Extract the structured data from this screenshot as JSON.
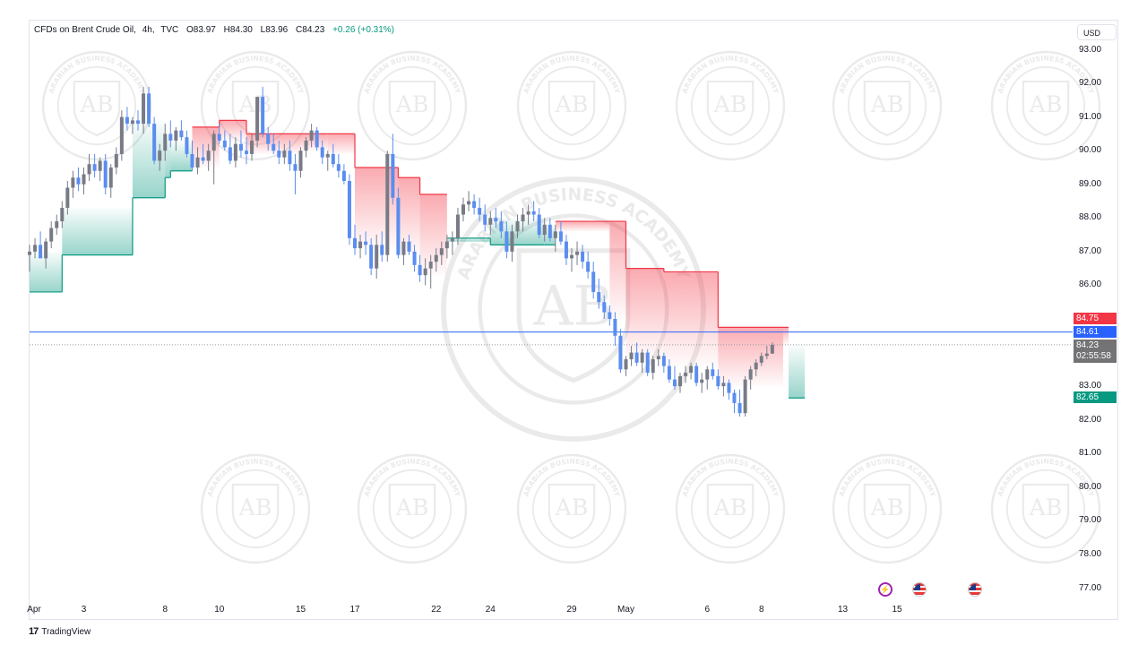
{
  "header": {
    "symbol": "CFDs on Brent Crude Oil",
    "interval": "4h",
    "source": "TVC",
    "open_label": "O",
    "open": "83.97",
    "high_label": "H",
    "high": "84.30",
    "low_label": "L",
    "low": "83.96",
    "close_label": "C",
    "close": "84.23",
    "change": "+0.26 (+0.31%)"
  },
  "currency": "USD",
  "brand": {
    "name": "TradingView",
    "mark": "17"
  },
  "watermark": {
    "top_text": "ARABIAN BUSINESS ACADEMY",
    "initials": "AB"
  },
  "price_labels": {
    "upper_line": "84.75",
    "current_line": "84.61",
    "last_price": "84.23",
    "countdown": "02:55:58",
    "lower_line": "82.65"
  },
  "events": [
    {
      "kind": "flash-icon"
    },
    {
      "kind": "us-flag-icon"
    },
    {
      "kind": "us-flag-icon"
    }
  ],
  "colors": {
    "up": "#089981",
    "down": "#2962ff",
    "bull_candle": "#787b86",
    "bear_candle": "#5b8def",
    "supertrend_up": "#089981",
    "supertrend_down": "#f23645",
    "hline": "#2962ff",
    "watermark": "#d9d9d9"
  },
  "chart_data": {
    "type": "candlestick",
    "title": "CFDs on Brent Crude Oil, 4h, TVC",
    "ylim": [
      76.5,
      93.3
    ],
    "y_ticks": [
      "93.00",
      "92.00",
      "91.00",
      "90.00",
      "89.00",
      "88.00",
      "87.00",
      "86.00",
      "83.00",
      "82.00",
      "81.00",
      "80.00",
      "79.00",
      "78.00",
      "77.00"
    ],
    "x_ticks": [
      "Apr",
      "3",
      "8",
      "10",
      "15",
      "17",
      "22",
      "24",
      "29",
      "May",
      "6",
      "8",
      "13",
      "15"
    ],
    "x_tick_index": [
      0,
      10,
      25,
      35,
      50,
      60,
      75,
      85,
      100,
      110,
      125,
      135,
      150,
      160
    ],
    "candles": [
      [
        86.9,
        87.2,
        86.4,
        87.0
      ],
      [
        87.0,
        87.4,
        86.8,
        87.2
      ],
      [
        87.2,
        87.6,
        86.9,
        86.8
      ],
      [
        86.8,
        87.4,
        86.5,
        87.3
      ],
      [
        87.3,
        87.9,
        87.1,
        87.7
      ],
      [
        87.7,
        88.1,
        87.5,
        87.9
      ],
      [
        87.9,
        88.5,
        87.7,
        88.3
      ],
      [
        88.3,
        89.1,
        88.1,
        88.9
      ],
      [
        88.9,
        89.4,
        88.6,
        89.2
      ],
      [
        89.2,
        89.5,
        88.8,
        89.0
      ],
      [
        89.0,
        89.5,
        88.7,
        89.3
      ],
      [
        89.3,
        89.9,
        89.1,
        89.6
      ],
      [
        89.6,
        89.9,
        89.2,
        89.4
      ],
      [
        89.4,
        89.8,
        89.1,
        89.7
      ],
      [
        89.7,
        89.9,
        88.7,
        88.9
      ],
      [
        88.9,
        89.6,
        88.6,
        89.5
      ],
      [
        89.5,
        90.1,
        89.3,
        89.9
      ],
      [
        89.9,
        91.2,
        89.7,
        91.0
      ],
      [
        91.0,
        91.3,
        90.6,
        90.8
      ],
      [
        90.8,
        91.0,
        90.5,
        90.9
      ],
      [
        90.9,
        91.2,
        90.6,
        90.8
      ],
      [
        90.8,
        91.9,
        90.5,
        91.7
      ],
      [
        91.7,
        91.9,
        90.7,
        90.8
      ],
      [
        90.8,
        91.0,
        89.6,
        89.7
      ],
      [
        89.7,
        90.2,
        89.4,
        90.0
      ],
      [
        90.0,
        90.8,
        89.7,
        90.5
      ],
      [
        90.5,
        90.9,
        90.1,
        90.3
      ],
      [
        90.3,
        90.7,
        90.0,
        90.6
      ],
      [
        90.6,
        90.9,
        90.3,
        90.4
      ],
      [
        90.4,
        90.6,
        89.8,
        89.9
      ],
      [
        89.9,
        90.3,
        89.4,
        89.5
      ],
      [
        89.5,
        90.1,
        89.3,
        89.8
      ],
      [
        89.8,
        90.2,
        89.6,
        89.7
      ],
      [
        89.7,
        90.2,
        89.4,
        90.0
      ],
      [
        90.0,
        90.6,
        89.0,
        90.5
      ],
      [
        90.5,
        90.8,
        90.2,
        90.3
      ],
      [
        90.3,
        90.6,
        90.0,
        90.1
      ],
      [
        90.1,
        90.5,
        89.6,
        89.7
      ],
      [
        89.7,
        90.4,
        89.5,
        90.2
      ],
      [
        90.2,
        90.6,
        89.8,
        90.0
      ],
      [
        90.0,
        90.4,
        89.6,
        89.9
      ],
      [
        89.9,
        90.5,
        89.7,
        90.3
      ],
      [
        90.3,
        91.6,
        90.1,
        91.6
      ],
      [
        91.6,
        91.9,
        90.4,
        90.5
      ],
      [
        90.5,
        90.7,
        90.0,
        90.2
      ],
      [
        90.2,
        90.5,
        89.9,
        90.0
      ],
      [
        90.0,
        90.3,
        89.6,
        89.8
      ],
      [
        89.8,
        90.2,
        89.6,
        90.0
      ],
      [
        90.0,
        90.3,
        89.4,
        89.6
      ],
      [
        89.6,
        89.9,
        88.7,
        89.4
      ],
      [
        89.4,
        90.1,
        89.2,
        90.0
      ],
      [
        90.0,
        90.4,
        89.8,
        90.3
      ],
      [
        90.3,
        90.8,
        90.1,
        90.6
      ],
      [
        90.6,
        90.7,
        90.0,
        90.1
      ],
      [
        90.1,
        90.3,
        89.6,
        89.8
      ],
      [
        89.8,
        90.0,
        89.4,
        89.9
      ],
      [
        89.9,
        90.2,
        89.5,
        89.6
      ],
      [
        89.6,
        89.9,
        89.2,
        89.4
      ],
      [
        89.4,
        89.6,
        89.0,
        89.1
      ],
      [
        89.1,
        89.3,
        87.2,
        87.4
      ],
      [
        87.4,
        87.8,
        86.9,
        87.1
      ],
      [
        87.1,
        87.5,
        86.8,
        87.3
      ],
      [
        87.3,
        87.6,
        86.9,
        87.2
      ],
      [
        87.2,
        87.4,
        86.3,
        86.5
      ],
      [
        86.5,
        87.5,
        86.2,
        87.2
      ],
      [
        87.2,
        87.6,
        86.7,
        86.9
      ],
      [
        86.9,
        90.0,
        86.7,
        89.9
      ],
      [
        89.9,
        90.5,
        88.4,
        88.6
      ],
      [
        88.6,
        88.9,
        86.8,
        86.9
      ],
      [
        86.9,
        87.4,
        86.6,
        87.3
      ],
      [
        87.3,
        87.5,
        86.9,
        87.0
      ],
      [
        87.0,
        87.2,
        86.4,
        86.6
      ],
      [
        86.6,
        86.9,
        86.1,
        86.3
      ],
      [
        86.3,
        86.8,
        86.0,
        86.5
      ],
      [
        86.5,
        86.9,
        85.9,
        86.7
      ],
      [
        86.7,
        87.1,
        86.4,
        86.9
      ],
      [
        86.9,
        87.3,
        86.6,
        87.1
      ],
      [
        87.1,
        87.5,
        86.8,
        87.3
      ],
      [
        87.3,
        87.6,
        86.9,
        87.4
      ],
      [
        87.4,
        88.3,
        87.2,
        88.1
      ],
      [
        88.1,
        88.6,
        87.9,
        88.4
      ],
      [
        88.4,
        88.8,
        88.2,
        88.5
      ],
      [
        88.5,
        88.7,
        88.1,
        88.3
      ],
      [
        88.3,
        88.6,
        87.9,
        88.1
      ],
      [
        88.1,
        88.4,
        87.6,
        87.8
      ],
      [
        87.8,
        88.2,
        87.5,
        88.0
      ],
      [
        88.0,
        88.3,
        87.7,
        87.9
      ],
      [
        87.9,
        88.2,
        87.4,
        87.6
      ],
      [
        87.6,
        87.9,
        86.8,
        87.0
      ],
      [
        87.0,
        87.8,
        86.7,
        87.6
      ],
      [
        87.6,
        88.1,
        87.4,
        87.9
      ],
      [
        87.9,
        88.3,
        87.6,
        88.1
      ],
      [
        88.1,
        88.4,
        87.8,
        88.2
      ],
      [
        88.2,
        88.5,
        87.9,
        88.1
      ],
      [
        88.1,
        88.3,
        87.4,
        87.5
      ],
      [
        87.5,
        88.0,
        87.3,
        87.8
      ],
      [
        87.8,
        88.0,
        87.3,
        87.4
      ],
      [
        87.4,
        87.8,
        87.0,
        87.6
      ],
      [
        87.6,
        87.9,
        87.2,
        87.3
      ],
      [
        87.3,
        87.5,
        86.6,
        86.8
      ],
      [
        86.8,
        87.1,
        86.4,
        86.9
      ],
      [
        86.9,
        87.3,
        86.6,
        87.0
      ],
      [
        87.0,
        87.2,
        86.5,
        86.7
      ],
      [
        86.7,
        87.0,
        86.2,
        86.4
      ],
      [
        86.4,
        86.7,
        85.6,
        85.8
      ],
      [
        85.8,
        86.2,
        85.3,
        85.5
      ],
      [
        85.5,
        85.7,
        85.0,
        85.2
      ],
      [
        85.2,
        85.4,
        84.8,
        85.0
      ],
      [
        85.0,
        85.2,
        84.2,
        84.5
      ],
      [
        84.5,
        84.7,
        83.4,
        83.5
      ],
      [
        83.5,
        83.9,
        83.3,
        83.8
      ],
      [
        83.8,
        84.2,
        83.6,
        84.0
      ],
      [
        84.0,
        84.3,
        83.6,
        83.7
      ],
      [
        83.7,
        84.1,
        83.4,
        84.0
      ],
      [
        84.0,
        84.1,
        83.3,
        83.4
      ],
      [
        83.4,
        83.9,
        83.2,
        83.8
      ],
      [
        83.8,
        84.1,
        83.6,
        83.9
      ],
      [
        83.9,
        84.0,
        83.4,
        83.6
      ],
      [
        83.6,
        83.8,
        83.1,
        83.2
      ],
      [
        83.2,
        83.6,
        82.9,
        83.0
      ],
      [
        83.0,
        83.4,
        82.8,
        83.3
      ],
      [
        83.3,
        83.6,
        83.1,
        83.4
      ],
      [
        83.4,
        83.7,
        83.2,
        83.6
      ],
      [
        83.6,
        83.7,
        83.0,
        83.1
      ],
      [
        83.1,
        83.4,
        82.8,
        83.2
      ],
      [
        83.2,
        83.6,
        82.9,
        83.5
      ],
      [
        83.5,
        83.7,
        83.2,
        83.3
      ],
      [
        83.3,
        83.5,
        82.9,
        83.0
      ],
      [
        83.0,
        83.3,
        82.7,
        83.1
      ],
      [
        83.1,
        83.2,
        82.6,
        82.8
      ],
      [
        82.8,
        82.9,
        82.2,
        82.5
      ],
      [
        82.5,
        82.9,
        82.1,
        82.2
      ],
      [
        82.2,
        83.3,
        82.1,
        83.2
      ],
      [
        83.2,
        83.6,
        82.9,
        83.5
      ],
      [
        83.5,
        83.8,
        83.3,
        83.7
      ],
      [
        83.7,
        84.0,
        83.6,
        83.9
      ],
      [
        83.9,
        84.2,
        83.8,
        83.97
      ],
      [
        83.97,
        84.3,
        83.96,
        84.23
      ]
    ],
    "supertrend": [
      [
        0,
        85.8,
        "up"
      ],
      [
        6,
        86.9,
        "up"
      ],
      [
        19,
        88.6,
        "up"
      ],
      [
        25,
        89.2,
        "up"
      ],
      [
        26,
        89.4,
        "up"
      ],
      [
        30,
        90.7,
        "down"
      ],
      [
        35,
        90.9,
        "down"
      ],
      [
        40,
        90.5,
        "down"
      ],
      [
        50,
        90.5,
        "down"
      ],
      [
        55,
        90.5,
        "down"
      ],
      [
        60,
        89.5,
        "down"
      ],
      [
        68,
        89.2,
        "down"
      ],
      [
        72,
        88.7,
        "down"
      ],
      [
        77,
        87.4,
        "up"
      ],
      [
        85,
        87.2,
        "up"
      ],
      [
        95,
        87.2,
        "up"
      ],
      [
        97,
        87.9,
        "down"
      ],
      [
        107,
        87.9,
        "down"
      ],
      [
        110,
        86.5,
        "down"
      ],
      [
        117,
        86.4,
        "down"
      ],
      [
        127,
        84.75,
        "down"
      ],
      [
        139,
        84.75,
        "down"
      ],
      [
        140,
        82.65,
        "up"
      ],
      [
        143,
        82.65,
        "up"
      ]
    ],
    "hline": 84.61,
    "last_price": 84.23
  }
}
